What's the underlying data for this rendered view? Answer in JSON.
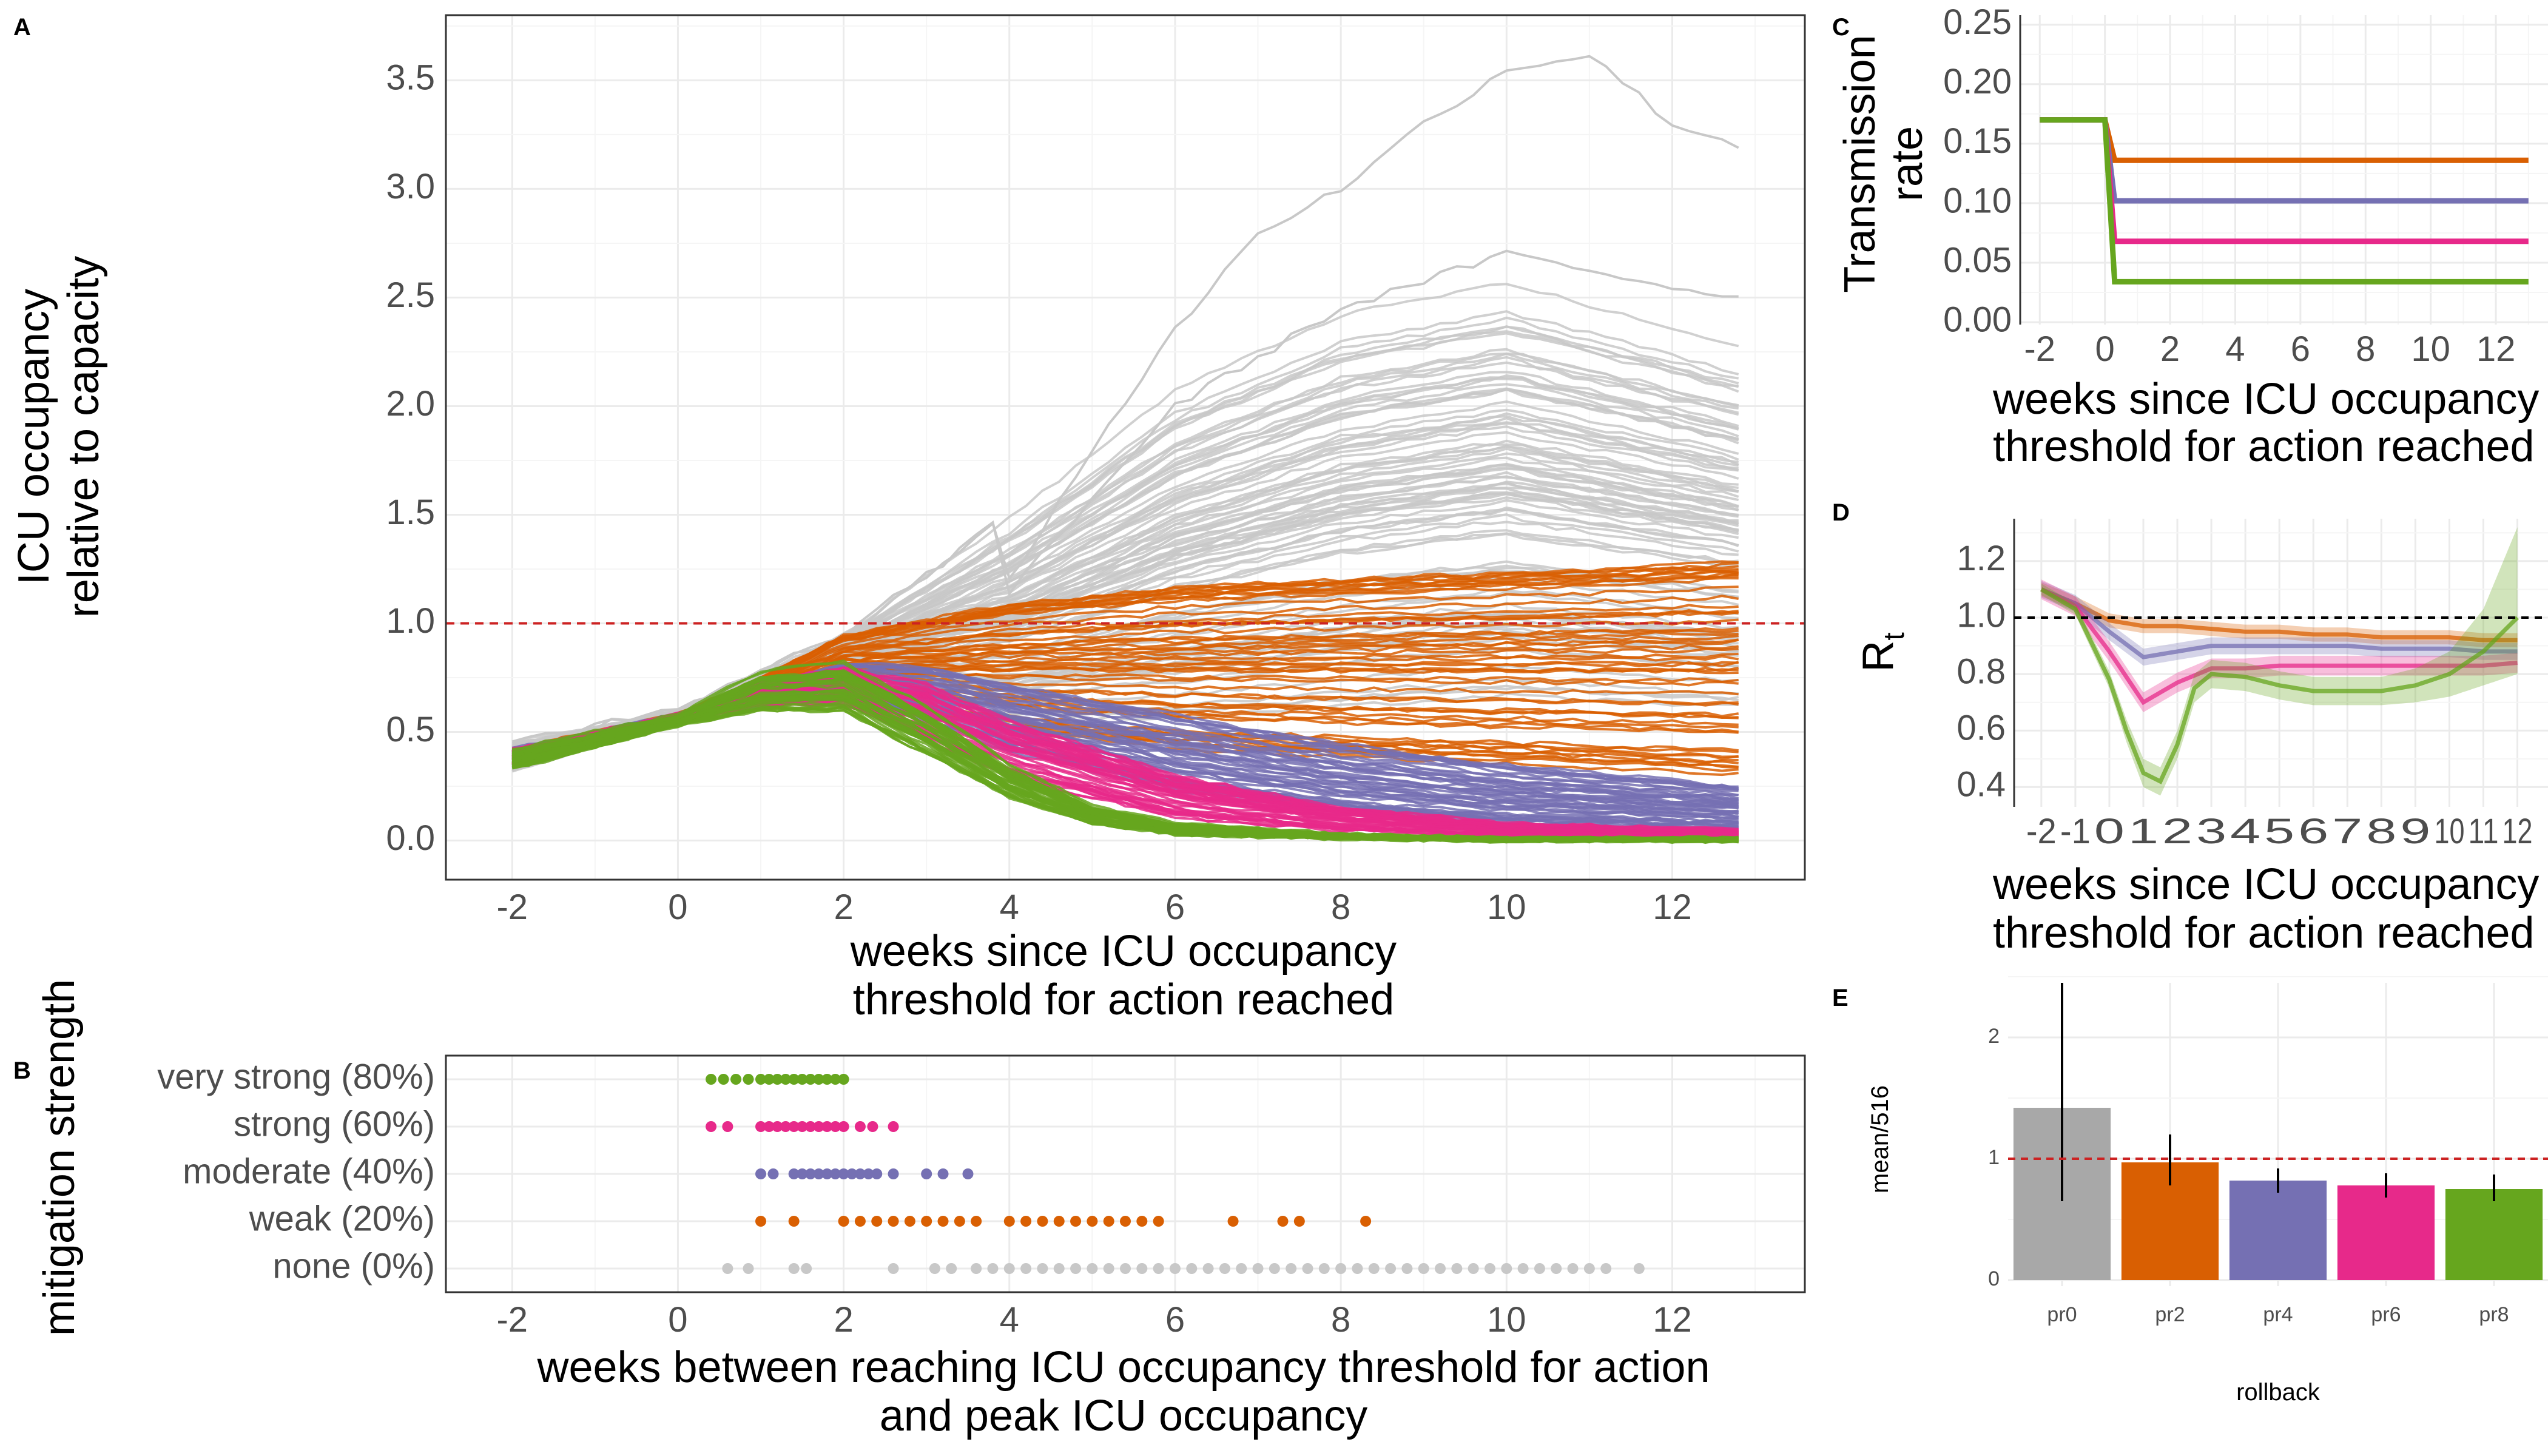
{
  "colors": {
    "none": "#c8c8c8",
    "weak": "#d95f02",
    "moderate": "#7570b3",
    "strong": "#e7298a",
    "very_strong": "#66a61e",
    "threshold": "#cc2222"
  },
  "chart_data": [
    {
      "panel": "A",
      "type": "line",
      "xlabel_lines": [
        "weeks since ICU occupancy",
        "threshold for action reached"
      ],
      "ylabel_lines": [
        "ICU occupancy",
        "relative to capacity"
      ],
      "xlim": [
        -2.8,
        13.6
      ],
      "ylim": [
        -0.18,
        3.8
      ],
      "xticks": [
        -2,
        0,
        2,
        4,
        6,
        8,
        10,
        12
      ],
      "yticks": [
        0.0,
        0.5,
        1.0,
        1.5,
        2.0,
        2.5,
        3.0,
        3.5
      ],
      "ytick_labels": [
        "0.0",
        "0.5",
        "1.0",
        "1.5",
        "2.0",
        "2.5",
        "3.0",
        "3.5"
      ],
      "reference_line": 1.0,
      "series": [
        {
          "key": "none",
          "envelope": {
            "x": [
              -2,
              0,
              2,
              4,
              6,
              8,
              10,
              12.8
            ],
            "low": [
              0.32,
              0.55,
              0.75,
              0.55,
              0.55,
              0.6,
              0.65,
              0.6
            ],
            "high": [
              0.45,
              0.6,
              0.95,
              1.5,
              2.1,
              2.45,
              2.6,
              2.3
            ]
          },
          "outliers": [
            {
              "x": [
                4,
                5,
                6,
                7,
                8,
                9,
                10,
                11,
                12,
                12.8
              ],
              "y": [
                1.2,
                1.8,
                2.35,
                2.8,
                3.0,
                3.3,
                3.55,
                3.62,
                3.3,
                3.2
              ]
            },
            {
              "x": [
                4,
                6,
                8,
                10,
                12,
                12.8
              ],
              "y": [
                1.15,
                2.0,
                2.45,
                2.7,
                2.55,
                2.5
              ]
            }
          ]
        },
        {
          "key": "weak",
          "envelope": {
            "x": [
              -2,
              0,
              1,
              2,
              4,
              6,
              8,
              10,
              12.8
            ],
            "low": [
              0.35,
              0.55,
              0.62,
              0.65,
              0.5,
              0.42,
              0.38,
              0.35,
              0.3
            ],
            "high": [
              0.42,
              0.58,
              0.75,
              0.95,
              1.1,
              1.18,
              1.22,
              1.25,
              1.3
            ]
          }
        },
        {
          "key": "moderate",
          "envelope": {
            "x": [
              -2,
              0,
              1,
              2,
              3,
              4,
              6,
              8,
              10,
              12.8
            ],
            "low": [
              0.35,
              0.55,
              0.62,
              0.65,
              0.55,
              0.4,
              0.22,
              0.12,
              0.07,
              0.05
            ],
            "high": [
              0.42,
              0.58,
              0.72,
              0.82,
              0.8,
              0.72,
              0.58,
              0.45,
              0.35,
              0.25
            ]
          }
        },
        {
          "key": "strong",
          "envelope": {
            "x": [
              -2,
              0,
              1,
              2,
              3,
              4,
              6,
              8,
              10,
              12.8
            ],
            "low": [
              0.35,
              0.55,
              0.62,
              0.62,
              0.45,
              0.28,
              0.1,
              0.04,
              0.02,
              0.01
            ],
            "high": [
              0.42,
              0.58,
              0.72,
              0.8,
              0.72,
              0.55,
              0.3,
              0.15,
              0.08,
              0.05
            ]
          }
        },
        {
          "key": "very_strong",
          "envelope": {
            "x": [
              -2,
              0,
              1,
              2,
              3,
              4,
              5,
              6,
              8,
              10,
              12.8
            ],
            "low": [
              0.33,
              0.53,
              0.6,
              0.6,
              0.4,
              0.2,
              0.08,
              0.03,
              0.01,
              0.0,
              0.0
            ],
            "high": [
              0.42,
              0.58,
              0.78,
              0.82,
              0.62,
              0.35,
              0.16,
              0.08,
              0.03,
              0.01,
              0.01
            ]
          }
        }
      ]
    },
    {
      "panel": "B",
      "type": "scatter",
      "ylabel": "mitigation strength",
      "xlabel_lines": [
        "weeks between reaching ICU occupancy threshold for action",
        "and peak ICU occupancy"
      ],
      "xlim": [
        -2.8,
        13.6
      ],
      "xticks": [
        -2,
        0,
        2,
        4,
        6,
        8,
        10,
        12
      ],
      "categories": [
        "very strong (80%)",
        "strong (60%)",
        "moderate (40%)",
        "weak (20%)",
        "none (0%)"
      ],
      "series": [
        {
          "key": "very_strong",
          "x": [
            0.4,
            0.55,
            0.7,
            0.85,
            1.0,
            1.1,
            1.2,
            1.3,
            1.4,
            1.5,
            1.6,
            1.7,
            1.8,
            1.9,
            2.0
          ]
        },
        {
          "key": "strong",
          "x": [
            0.4,
            0.6,
            1.0,
            1.1,
            1.2,
            1.3,
            1.4,
            1.5,
            1.6,
            1.7,
            1.8,
            1.9,
            2.0,
            2.2,
            2.35,
            2.6
          ]
        },
        {
          "key": "moderate",
          "x": [
            1.0,
            1.15,
            1.4,
            1.5,
            1.6,
            1.7,
            1.8,
            1.9,
            2.0,
            2.1,
            2.2,
            2.3,
            2.4,
            2.6,
            3.0,
            3.2,
            3.5
          ]
        },
        {
          "key": "weak",
          "x": [
            1.0,
            1.4,
            2.0,
            2.2,
            2.4,
            2.6,
            2.8,
            3.0,
            3.2,
            3.4,
            3.6,
            4.0,
            4.2,
            4.4,
            4.6,
            4.8,
            5.0,
            5.2,
            5.4,
            5.6,
            5.8,
            6.7,
            7.3,
            7.5,
            8.3
          ]
        },
        {
          "key": "none",
          "x": [
            0.6,
            0.85,
            1.4,
            1.55,
            2.6,
            3.1,
            3.3,
            3.6,
            3.8,
            4.0,
            4.2,
            4.4,
            4.6,
            4.8,
            5.0,
            5.2,
            5.4,
            5.6,
            5.8,
            6.0,
            6.2,
            6.4,
            6.6,
            6.8,
            7.0,
            7.2,
            7.4,
            7.6,
            7.8,
            8.0,
            8.2,
            8.4,
            8.6,
            8.8,
            9.0,
            9.2,
            9.4,
            9.6,
            9.8,
            10.0,
            10.2,
            10.4,
            10.6,
            10.8,
            11.0,
            11.2,
            11.6
          ]
        }
      ]
    },
    {
      "panel": "C",
      "type": "line",
      "ylabel_lines": [
        "Transmission",
        "rate"
      ],
      "xlabel_lines": [
        "weeks since ICU occupancy",
        "threshold for action reached"
      ],
      "xlim": [
        -2.6,
        13.6
      ],
      "ylim": [
        -0.002,
        0.258
      ],
      "xticks": [
        -2,
        0,
        2,
        4,
        6,
        8,
        10,
        12
      ],
      "yticks": [
        0.0,
        0.05,
        0.1,
        0.15,
        0.2,
        0.25
      ],
      "ytick_labels": [
        "0.00",
        "0.05",
        "0.10",
        "0.15",
        "0.20",
        "0.25"
      ],
      "series": [
        {
          "key": "weak",
          "x": [
            -2,
            0,
            0.3,
            13
          ],
          "y": [
            0.17,
            0.17,
            0.136,
            0.136
          ]
        },
        {
          "key": "moderate",
          "x": [
            -2,
            0,
            0.3,
            13
          ],
          "y": [
            0.17,
            0.17,
            0.102,
            0.102
          ]
        },
        {
          "key": "strong",
          "x": [
            -2,
            0,
            0.3,
            13
          ],
          "y": [
            0.17,
            0.17,
            0.068,
            0.068
          ]
        },
        {
          "key": "very_strong",
          "x": [
            -2,
            0,
            0.3,
            13
          ],
          "y": [
            0.17,
            0.17,
            0.034,
            0.034
          ]
        }
      ]
    },
    {
      "panel": "D",
      "type": "area",
      "ylabel": "R",
      "ylabel_sub": "t",
      "xlabel_lines": [
        "weeks since ICU occupancy",
        "threshold for action reached"
      ],
      "xlim": [
        -2.8,
        12.9
      ],
      "ylim": [
        0.33,
        1.35
      ],
      "xticks": [
        -2,
        -1,
        0,
        1,
        2,
        3,
        4,
        5,
        6,
        7,
        8,
        9,
        10,
        11,
        12
      ],
      "tick_strings": [
        "-2",
        "-1",
        "0",
        "1",
        "2",
        "3",
        "4",
        "5",
        "6",
        "7",
        "8",
        "9",
        "10",
        "11",
        "12"
      ],
      "yticks": [
        0.4,
        0.6,
        0.8,
        1.0,
        1.2
      ],
      "ytick_labels": [
        "0.4",
        "0.6",
        "0.8",
        "1.0",
        "1.2"
      ],
      "reference_line": 1.0,
      "series": [
        {
          "key": "weak",
          "x": [
            -2,
            -1,
            0,
            1,
            2,
            3,
            4,
            5,
            6,
            7,
            8,
            9,
            10,
            11,
            12
          ],
          "y": [
            1.1,
            1.05,
            0.99,
            0.97,
            0.97,
            0.96,
            0.95,
            0.95,
            0.94,
            0.94,
            0.93,
            0.93,
            0.93,
            0.92,
            0.92
          ],
          "band": 0.025
        },
        {
          "key": "moderate",
          "x": [
            -2,
            -1,
            0,
            1,
            2,
            3,
            4,
            5,
            6,
            7,
            8,
            9,
            10,
            11,
            12
          ],
          "y": [
            1.1,
            1.05,
            0.95,
            0.86,
            0.88,
            0.9,
            0.9,
            0.9,
            0.9,
            0.9,
            0.89,
            0.89,
            0.89,
            0.88,
            0.88
          ],
          "band": 0.03
        },
        {
          "key": "strong",
          "x": [
            -2,
            -1,
            0,
            1,
            2,
            3,
            4,
            5,
            6,
            7,
            8,
            9,
            10,
            11,
            12
          ],
          "y": [
            1.1,
            1.04,
            0.88,
            0.7,
            0.77,
            0.82,
            0.82,
            0.83,
            0.83,
            0.83,
            0.83,
            0.83,
            0.83,
            0.83,
            0.84
          ],
          "band": 0.035
        },
        {
          "key": "very_strong",
          "x": [
            -2,
            -1,
            0,
            0.5,
            1,
            1.5,
            2,
            2.5,
            3,
            4,
            5,
            6,
            7,
            8,
            9,
            10,
            11,
            12
          ],
          "y": [
            1.1,
            1.03,
            0.78,
            0.6,
            0.45,
            0.42,
            0.55,
            0.75,
            0.8,
            0.79,
            0.76,
            0.74,
            0.74,
            0.74,
            0.76,
            0.8,
            0.88,
            1.0
          ],
          "band_low": [
            0.02,
            0.02,
            0.03,
            0.04,
            0.05,
            0.05,
            0.05,
            0.05,
            0.05,
            0.05,
            0.05,
            0.05,
            0.05,
            0.05,
            0.06,
            0.08,
            0.12,
            0.2
          ],
          "band_high": [
            0.02,
            0.02,
            0.03,
            0.04,
            0.05,
            0.05,
            0.05,
            0.05,
            0.05,
            0.05,
            0.05,
            0.05,
            0.05,
            0.05,
            0.06,
            0.08,
            0.15,
            0.32
          ]
        }
      ]
    },
    {
      "panel": "E",
      "type": "bar",
      "ylabel": "mean/516",
      "xlabel": "rollback",
      "categories": [
        "pr0",
        "pr2",
        "pr4",
        "pr6",
        "pr8"
      ],
      "keys": [
        "none",
        "weak",
        "moderate",
        "strong",
        "very_strong"
      ],
      "values": [
        1.42,
        0.97,
        0.82,
        0.78,
        0.75
      ],
      "err_low": [
        0.65,
        0.78,
        0.72,
        0.68,
        0.65
      ],
      "err_high": [
        2.45,
        1.2,
        0.92,
        0.88,
        0.87
      ],
      "ylim": [
        -0.05,
        2.45
      ],
      "yticks": [
        0,
        1,
        2
      ],
      "ytick_labels": [
        "0",
        "1",
        "2"
      ],
      "reference_line": 1.0
    }
  ],
  "labels": {
    "panel_a": "A",
    "panel_b": "B",
    "panel_c": "C",
    "panel_d": "D",
    "panel_e": "E"
  }
}
